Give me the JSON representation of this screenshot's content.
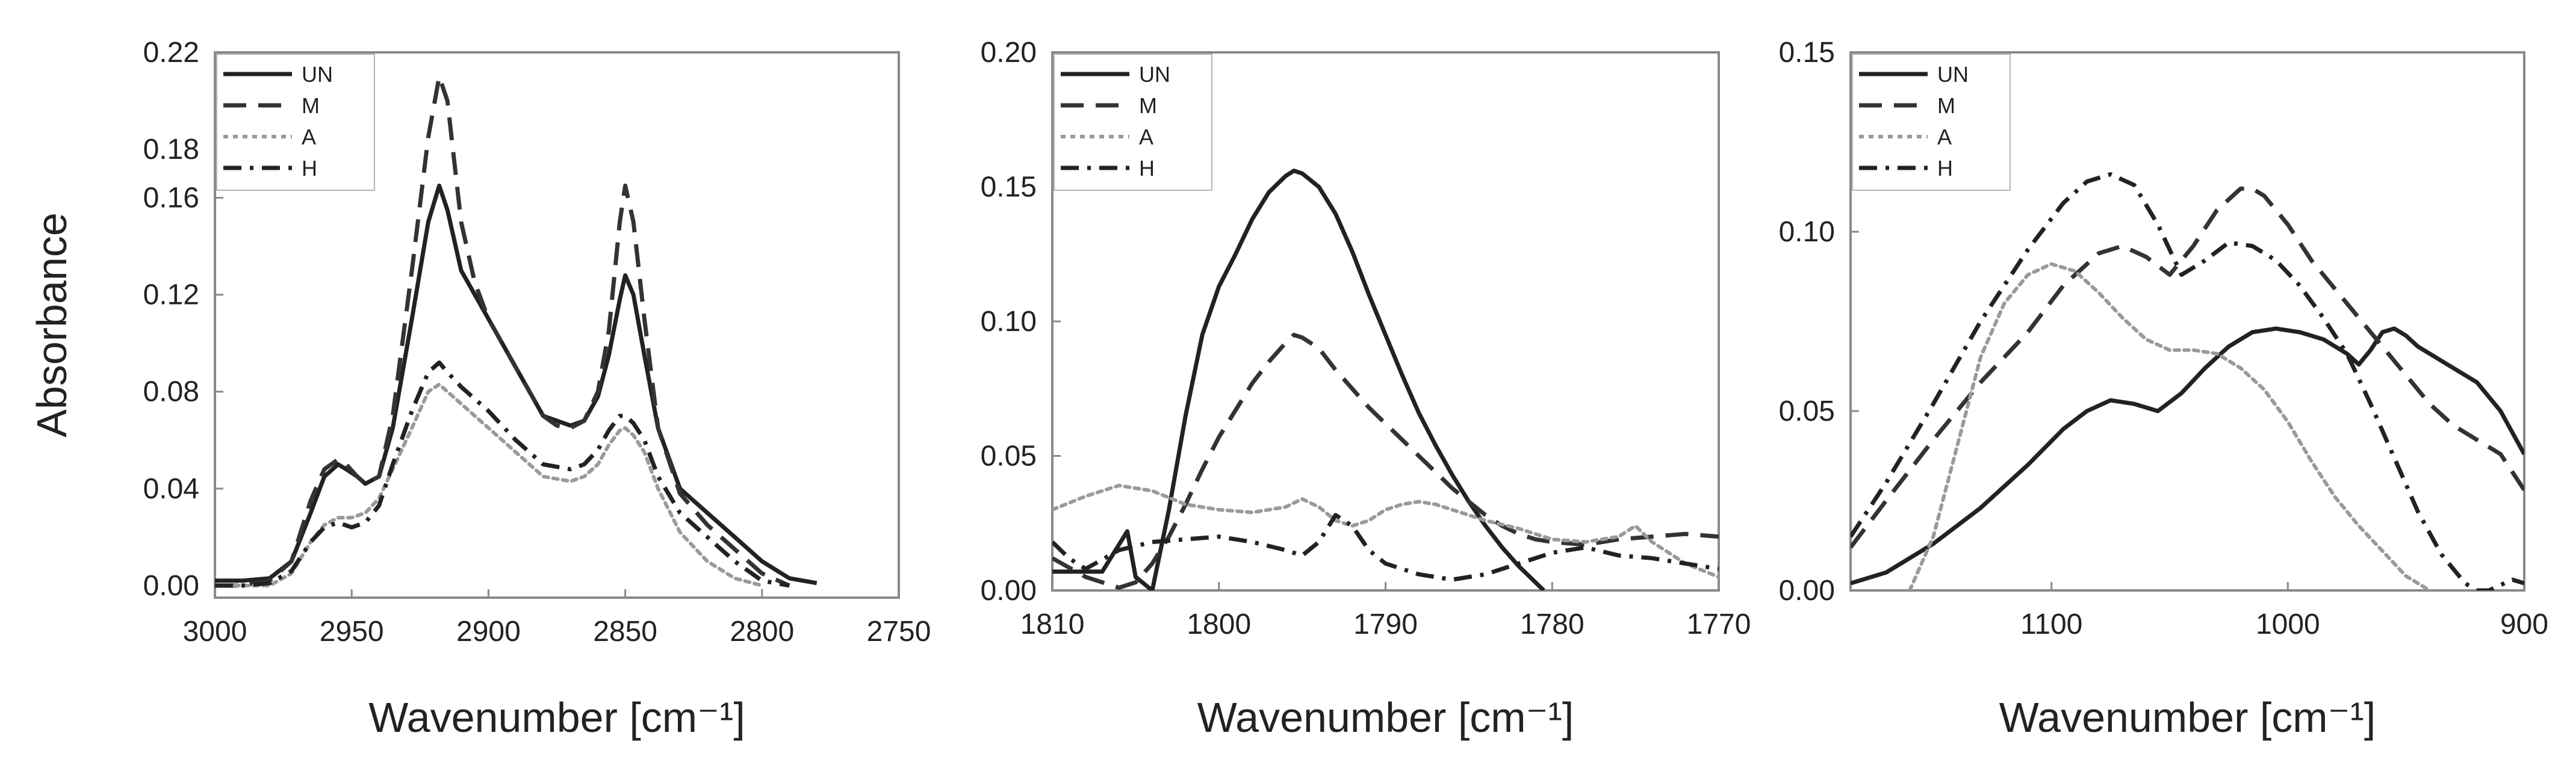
{
  "chart_data": [
    {
      "type": "line",
      "xlabel": "Wavenumber [cm⁻¹]",
      "ylabel": "Absorbance",
      "xlim": [
        3000,
        2750
      ],
      "ylim": [
        -0.005,
        0.22
      ],
      "x_ticks": [
        "3000",
        "2950",
        "2900",
        "2850",
        "2800",
        "2750"
      ],
      "x_tick_values": [
        3000,
        2950,
        2900,
        2850,
        2800,
        2750
      ],
      "y_ticks": [
        "0.00",
        "0.04",
        "0.08",
        "0.12",
        "0.16",
        "0.18",
        "0.22"
      ],
      "y_tick_values": [
        0.0,
        0.04,
        0.08,
        0.12,
        0.16,
        0.18,
        0.22
      ],
      "legend_position": "top-left",
      "series": [
        {
          "name": "UN",
          "style": "solid",
          "x": [
            3000,
            2990,
            2980,
            2972,
            2965,
            2960,
            2955,
            2952,
            2948,
            2945,
            2940,
            2935,
            2928,
            2922,
            2918,
            2915,
            2910,
            2900,
            2890,
            2880,
            2875,
            2870,
            2865,
            2860,
            2856,
            2852,
            2850,
            2847,
            2843,
            2838,
            2830,
            2820,
            2810,
            2800,
            2790,
            2780
          ],
          "y": [
            0.002,
            0.002,
            0.003,
            0.01,
            0.03,
            0.045,
            0.05,
            0.048,
            0.045,
            0.042,
            0.045,
            0.065,
            0.11,
            0.15,
            0.165,
            0.155,
            0.13,
            0.11,
            0.09,
            0.07,
            0.068,
            0.066,
            0.068,
            0.078,
            0.095,
            0.118,
            0.128,
            0.12,
            0.095,
            0.065,
            0.04,
            0.03,
            0.02,
            0.01,
            0.003,
            0.001
          ]
        },
        {
          "name": "M",
          "style": "dashed",
          "x": [
            3000,
            2990,
            2980,
            2972,
            2965,
            2960,
            2955,
            2952,
            2948,
            2945,
            2940,
            2935,
            2928,
            2922,
            2918,
            2915,
            2910,
            2905,
            2900,
            2890,
            2880,
            2875,
            2870,
            2865,
            2860,
            2856,
            2852,
            2850,
            2847,
            2843,
            2838,
            2830,
            2820,
            2810,
            2800,
            2790
          ],
          "y": [
            0.0,
            0.0,
            0.002,
            0.01,
            0.035,
            0.048,
            0.052,
            0.05,
            0.045,
            0.042,
            0.045,
            0.07,
            0.13,
            0.185,
            0.21,
            0.2,
            0.15,
            0.125,
            0.11,
            0.09,
            0.07,
            0.066,
            0.065,
            0.068,
            0.08,
            0.105,
            0.15,
            0.165,
            0.15,
            0.11,
            0.065,
            0.038,
            0.025,
            0.015,
            0.005,
            0.0
          ]
        },
        {
          "name": "A",
          "style": "dotted",
          "x": [
            3000,
            2990,
            2980,
            2972,
            2965,
            2960,
            2955,
            2950,
            2945,
            2940,
            2935,
            2928,
            2922,
            2918,
            2915,
            2910,
            2900,
            2890,
            2880,
            2870,
            2865,
            2860,
            2856,
            2852,
            2850,
            2847,
            2843,
            2838,
            2830,
            2820,
            2810,
            2800
          ],
          "y": [
            0.0,
            0.0,
            0.0,
            0.005,
            0.018,
            0.025,
            0.028,
            0.028,
            0.03,
            0.036,
            0.048,
            0.065,
            0.08,
            0.083,
            0.08,
            0.075,
            0.065,
            0.055,
            0.045,
            0.043,
            0.045,
            0.05,
            0.058,
            0.064,
            0.065,
            0.062,
            0.055,
            0.04,
            0.022,
            0.01,
            0.003,
            0.0
          ]
        },
        {
          "name": "H",
          "style": "dashdot",
          "x": [
            3000,
            2990,
            2980,
            2972,
            2965,
            2960,
            2955,
            2950,
            2945,
            2940,
            2935,
            2928,
            2922,
            2918,
            2915,
            2910,
            2900,
            2890,
            2880,
            2870,
            2865,
            2860,
            2856,
            2852,
            2850,
            2847,
            2843,
            2838,
            2830,
            2820,
            2810,
            2800,
            2790
          ],
          "y": [
            0.0,
            0.0,
            0.001,
            0.006,
            0.018,
            0.024,
            0.026,
            0.024,
            0.026,
            0.033,
            0.05,
            0.072,
            0.088,
            0.092,
            0.088,
            0.082,
            0.072,
            0.06,
            0.05,
            0.048,
            0.05,
            0.056,
            0.064,
            0.07,
            0.07,
            0.067,
            0.06,
            0.045,
            0.03,
            0.02,
            0.01,
            0.002,
            0.0
          ]
        }
      ]
    },
    {
      "type": "line",
      "xlabel": "Wavenumber [cm⁻¹]",
      "ylabel": "",
      "xlim": [
        1810,
        1770
      ],
      "ylim": [
        0,
        0.2
      ],
      "x_ticks": [
        "1810",
        "1800",
        "1790",
        "1780",
        "1770"
      ],
      "x_tick_values": [
        1810,
        1800,
        1790,
        1780,
        1770
      ],
      "y_ticks": [
        "0.00",
        "0.05",
        "0.10",
        "0.15",
        "0.20"
      ],
      "y_tick_values": [
        0.0,
        0.05,
        0.1,
        0.15,
        0.2
      ],
      "legend_position": "top-left",
      "series": [
        {
          "name": "UN",
          "style": "solid",
          "x": [
            1810,
            1807,
            1805.5,
            1805,
            1804,
            1803,
            1802,
            1801,
            1800,
            1799,
            1798,
            1797,
            1796,
            1795.5,
            1795,
            1794,
            1793,
            1792,
            1791,
            1790,
            1789,
            1788,
            1787,
            1786,
            1785,
            1784,
            1783,
            1782,
            1781,
            1780.5
          ],
          "y": [
            0.007,
            0.007,
            0.022,
            0.005,
            0.0,
            0.03,
            0.065,
            0.095,
            0.113,
            0.125,
            0.138,
            0.148,
            0.154,
            0.156,
            0.155,
            0.15,
            0.14,
            0.126,
            0.11,
            0.095,
            0.08,
            0.066,
            0.054,
            0.043,
            0.033,
            0.024,
            0.016,
            0.009,
            0.003,
            0.0
          ]
        },
        {
          "name": "M",
          "style": "dashed",
          "x": [
            1810,
            1808,
            1806,
            1805,
            1804,
            1803,
            1802,
            1801,
            1800,
            1799,
            1798,
            1797,
            1796,
            1795.5,
            1795,
            1794,
            1793,
            1792,
            1791,
            1790,
            1789,
            1788,
            1787,
            1786,
            1785,
            1784,
            1783,
            1782,
            1781,
            1780,
            1778,
            1776,
            1774,
            1772,
            1770
          ],
          "y": [
            0.012,
            0.005,
            0.001,
            0.003,
            0.01,
            0.02,
            0.032,
            0.045,
            0.057,
            0.067,
            0.077,
            0.085,
            0.092,
            0.095,
            0.094,
            0.09,
            0.082,
            0.075,
            0.068,
            0.062,
            0.056,
            0.05,
            0.044,
            0.038,
            0.033,
            0.028,
            0.024,
            0.021,
            0.019,
            0.018,
            0.017,
            0.019,
            0.02,
            0.021,
            0.02
          ]
        },
        {
          "name": "A",
          "style": "dotted",
          "x": [
            1810,
            1808,
            1806,
            1804,
            1802,
            1800,
            1798,
            1796,
            1795,
            1794,
            1793,
            1792,
            1791,
            1790,
            1789,
            1788,
            1787,
            1786,
            1784,
            1782,
            1780,
            1778,
            1776,
            1775,
            1774,
            1772,
            1770
          ],
          "y": [
            0.03,
            0.035,
            0.039,
            0.037,
            0.032,
            0.03,
            0.029,
            0.031,
            0.034,
            0.031,
            0.026,
            0.024,
            0.026,
            0.03,
            0.032,
            0.033,
            0.032,
            0.03,
            0.026,
            0.023,
            0.019,
            0.018,
            0.02,
            0.024,
            0.018,
            0.01,
            0.005
          ]
        },
        {
          "name": "H",
          "style": "dashdot",
          "x": [
            1810,
            1809,
            1808,
            1806,
            1804,
            1802,
            1800,
            1798,
            1796,
            1795,
            1794,
            1793,
            1792,
            1791,
            1790,
            1788,
            1786,
            1784,
            1782,
            1780,
            1778,
            1776,
            1774,
            1772,
            1770
          ],
          "y": [
            0.018,
            0.012,
            0.008,
            0.015,
            0.018,
            0.019,
            0.02,
            0.018,
            0.015,
            0.013,
            0.018,
            0.028,
            0.024,
            0.015,
            0.01,
            0.006,
            0.004,
            0.006,
            0.01,
            0.014,
            0.016,
            0.013,
            0.012,
            0.01,
            0.008
          ]
        }
      ]
    },
    {
      "type": "line",
      "xlabel": "Wavenumber [cm⁻¹]",
      "ylabel": "",
      "xlim": [
        1185,
        900
      ],
      "ylim": [
        0,
        0.15
      ],
      "x_ticks": [
        "1100",
        "1000",
        "900"
      ],
      "x_tick_values": [
        1100,
        1000,
        900
      ],
      "y_ticks": [
        "0.00",
        "0.05",
        "0.10",
        "0.15"
      ],
      "y_tick_values": [
        0.0,
        0.05,
        0.1,
        0.15
      ],
      "legend_position": "top-left",
      "series": [
        {
          "name": "UN",
          "style": "solid",
          "x": [
            1185,
            1170,
            1150,
            1130,
            1110,
            1095,
            1085,
            1075,
            1065,
            1055,
            1045,
            1035,
            1025,
            1015,
            1005,
            995,
            985,
            975,
            970,
            965,
            960,
            955,
            950,
            945,
            940,
            930,
            920,
            910,
            900
          ],
          "y": [
            0.002,
            0.005,
            0.013,
            0.023,
            0.035,
            0.045,
            0.05,
            0.053,
            0.052,
            0.05,
            0.055,
            0.062,
            0.068,
            0.072,
            0.073,
            0.072,
            0.07,
            0.066,
            0.063,
            0.067,
            0.072,
            0.073,
            0.071,
            0.068,
            0.066,
            0.062,
            0.058,
            0.05,
            0.038
          ]
        },
        {
          "name": "M",
          "style": "dashed",
          "x": [
            1185,
            1170,
            1150,
            1130,
            1110,
            1095,
            1080,
            1070,
            1060,
            1050,
            1040,
            1030,
            1020,
            1015,
            1010,
            1000,
            990,
            980,
            970,
            960,
            950,
            940,
            930,
            920,
            910,
            900
          ],
          "y": [
            0.012,
            0.025,
            0.042,
            0.058,
            0.072,
            0.085,
            0.094,
            0.096,
            0.093,
            0.088,
            0.096,
            0.106,
            0.112,
            0.112,
            0.11,
            0.102,
            0.092,
            0.084,
            0.076,
            0.068,
            0.06,
            0.052,
            0.046,
            0.042,
            0.038,
            0.028
          ]
        },
        {
          "name": "A",
          "style": "dotted",
          "x": [
            1160,
            1150,
            1140,
            1130,
            1120,
            1110,
            1100,
            1090,
            1080,
            1070,
            1060,
            1050,
            1040,
            1030,
            1020,
            1010,
            1000,
            990,
            980,
            970,
            960,
            950,
            940
          ],
          "y": [
            0.0,
            0.015,
            0.04,
            0.065,
            0.08,
            0.088,
            0.091,
            0.089,
            0.083,
            0.076,
            0.07,
            0.067,
            0.067,
            0.066,
            0.062,
            0.056,
            0.047,
            0.036,
            0.026,
            0.018,
            0.011,
            0.004,
            0.0
          ]
        },
        {
          "name": "H",
          "style": "dashdot",
          "x": [
            1185,
            1170,
            1150,
            1130,
            1110,
            1095,
            1085,
            1075,
            1065,
            1055,
            1045,
            1035,
            1025,
            1015,
            1005,
            995,
            985,
            975,
            965,
            955,
            945,
            935,
            925,
            920,
            915,
            905,
            900
          ],
          "y": [
            0.015,
            0.03,
            0.052,
            0.075,
            0.095,
            0.108,
            0.114,
            0.116,
            0.113,
            0.102,
            0.088,
            0.092,
            0.097,
            0.096,
            0.092,
            0.085,
            0.076,
            0.066,
            0.052,
            0.037,
            0.022,
            0.01,
            0.002,
            0.0,
            0.0,
            0.003,
            0.002
          ]
        }
      ]
    }
  ]
}
